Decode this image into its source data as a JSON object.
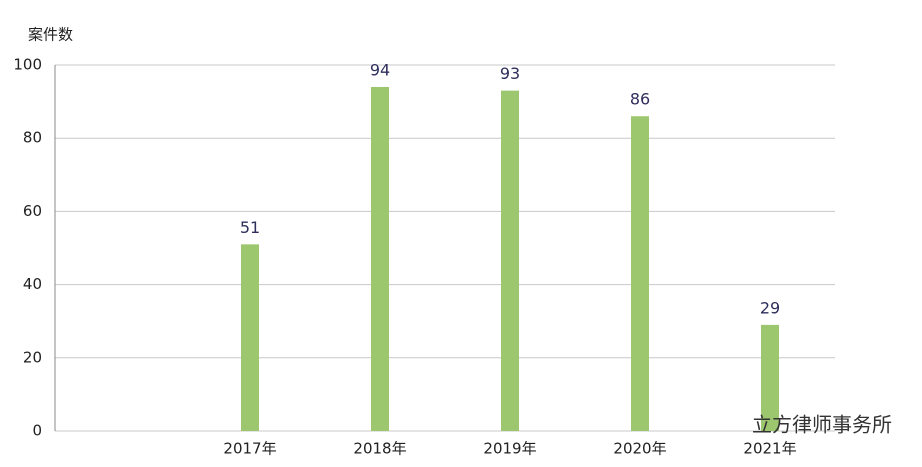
{
  "chart_data": {
    "type": "bar",
    "y_label": "案件数",
    "categories": [
      null,
      "2017年",
      "2018年",
      "2019年",
      "2020年",
      "2021年"
    ],
    "values": [
      null,
      51,
      94,
      93,
      86,
      29
    ],
    "color": "#9dc76e",
    "ylim": [
      0,
      100
    ],
    "yticks": [
      0,
      20,
      40,
      60,
      80,
      100
    ],
    "grid": true,
    "watermark": "立方律师事务所"
  }
}
